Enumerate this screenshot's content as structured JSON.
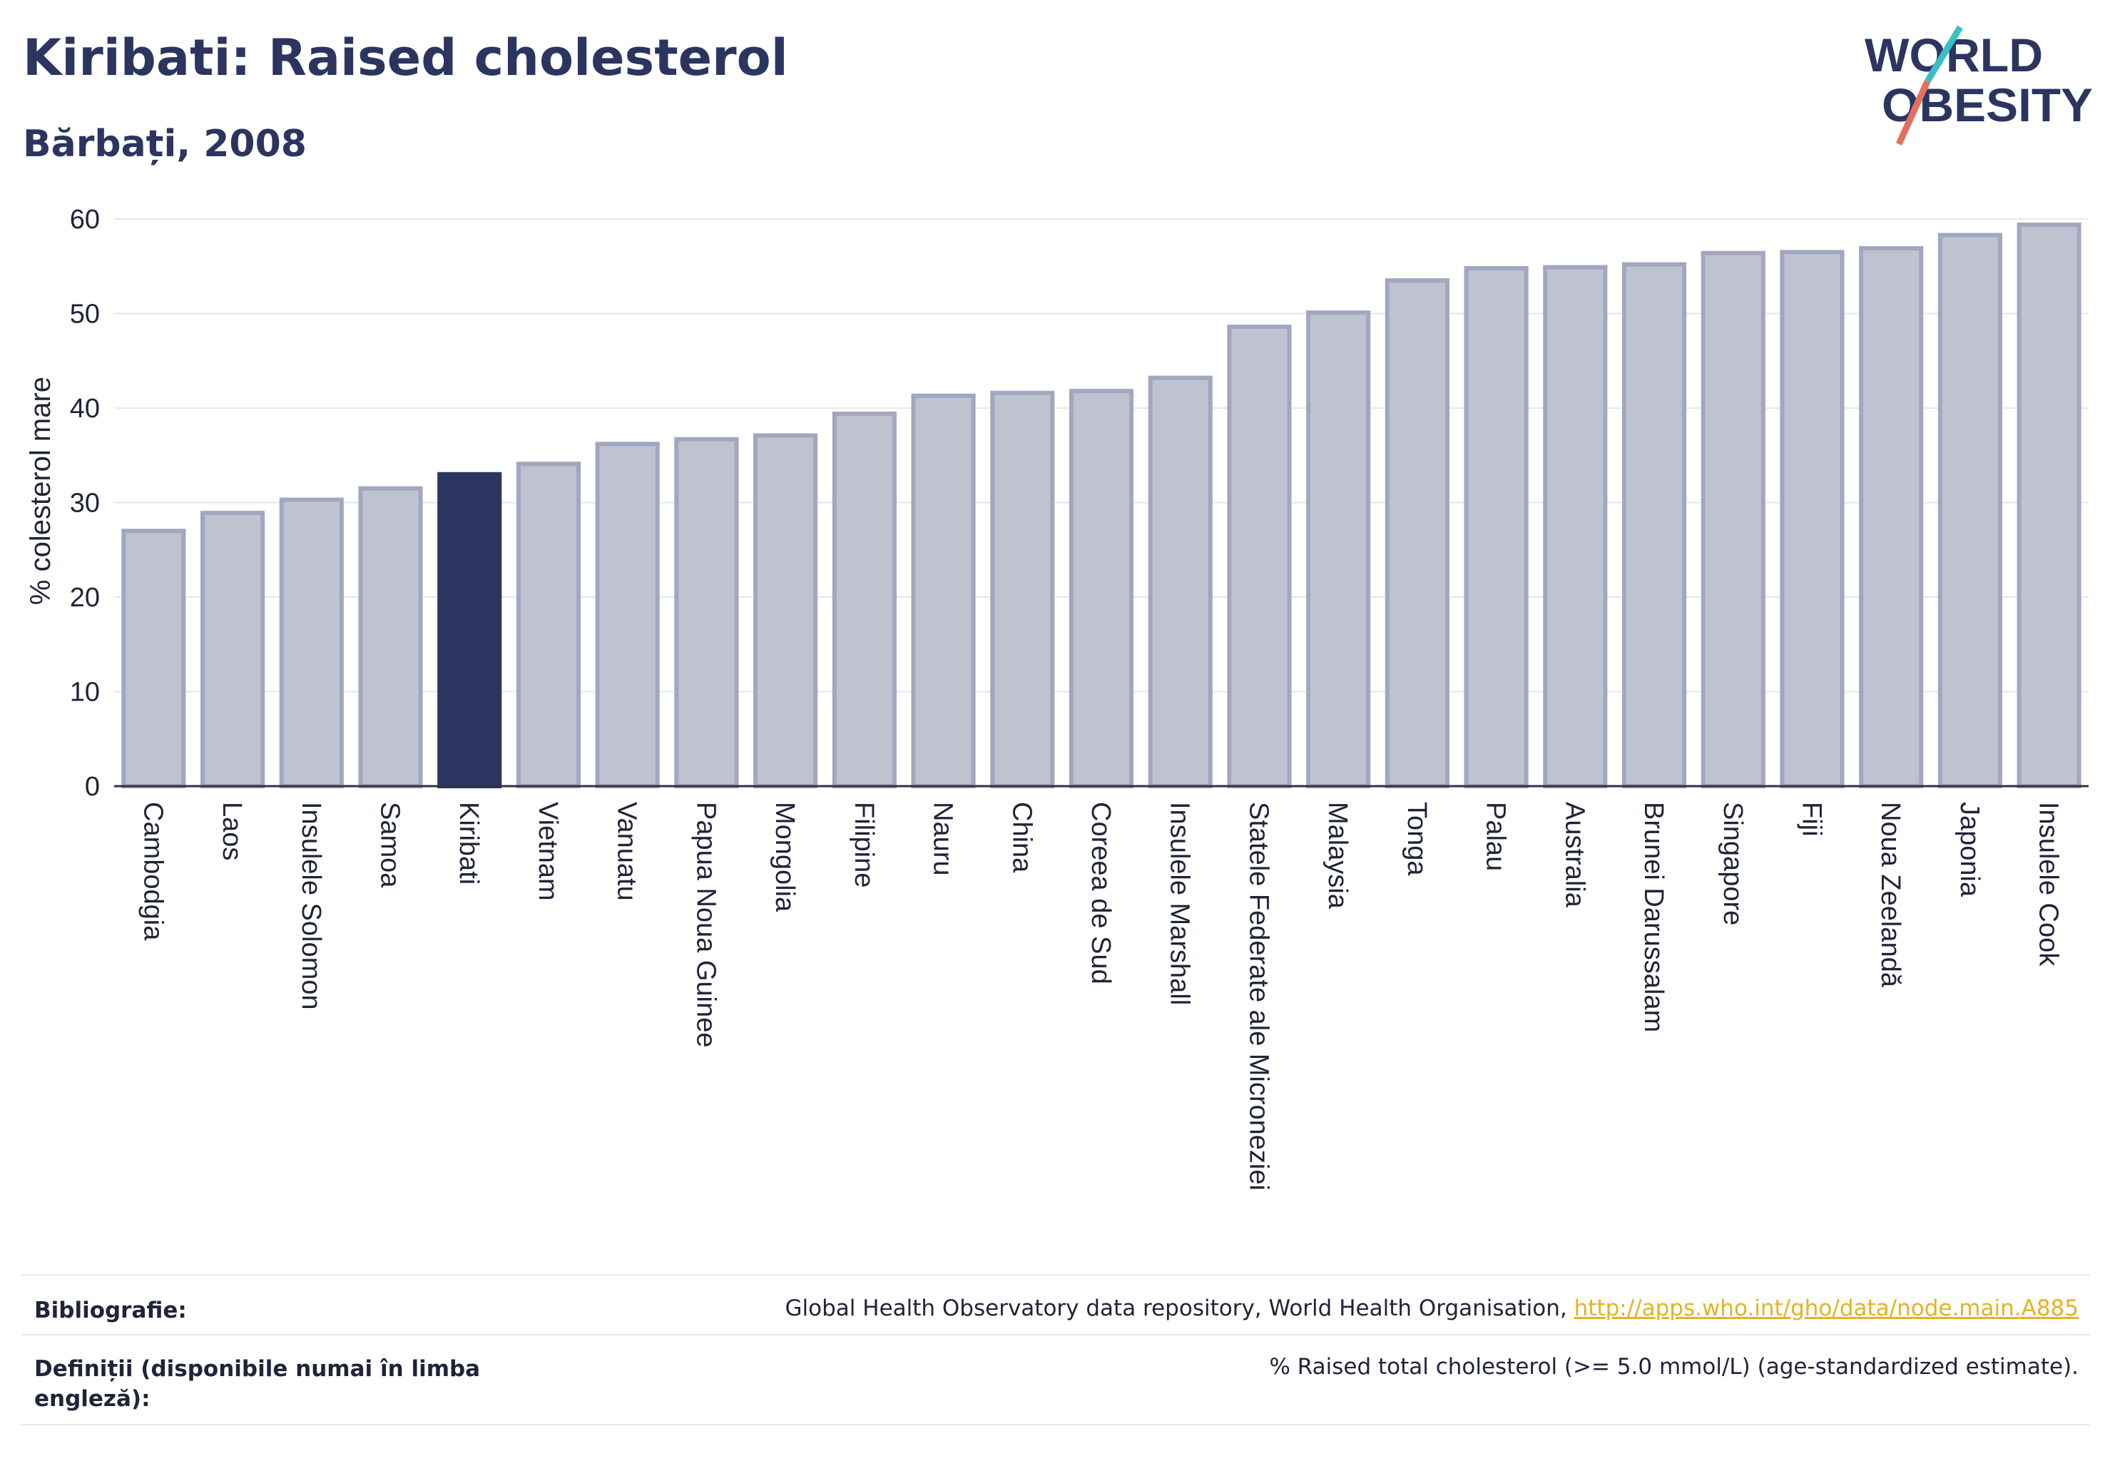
{
  "header": {
    "title": "Kiribati: Raised cholesterol",
    "subtitle": "Bărbați, 2008"
  },
  "logo": {
    "line1": "WORLD",
    "line2": "OBESITY"
  },
  "chart_data": {
    "type": "bar",
    "ylabel": "% colesterol mare",
    "xlabel": "",
    "ylim": [
      0,
      60
    ],
    "yticks": [
      0,
      10,
      20,
      30,
      40,
      50,
      60
    ],
    "grid": true,
    "highlight": "Kiribati",
    "colors": {
      "bar": "#bfc2d0",
      "bar_border": "#a2a7bf",
      "highlight": "#2b3560"
    },
    "categories": [
      "Cambodgia",
      "Laos",
      "Insulele Solomon",
      "Samoa",
      "Kiribati",
      "Vietnam",
      "Vanuatu",
      "Papua Noua Guinee",
      "Mongolia",
      "Filipine",
      "Nauru",
      "China",
      "Coreea de Sud",
      "Insulele Marshall",
      "Statele Federate ale Microneziei",
      "Malaysia",
      "Tonga",
      "Palau",
      "Australia",
      "Brunei Darussalam",
      "Singapore",
      "Fiji",
      "Noua Zeelandă",
      "Japonia",
      "Insulele Cook"
    ],
    "values": [
      27.0,
      28.9,
      30.3,
      31.5,
      33.0,
      34.1,
      36.2,
      36.7,
      37.1,
      39.4,
      41.3,
      41.6,
      41.8,
      43.2,
      48.6,
      50.1,
      53.5,
      54.8,
      54.9,
      55.2,
      56.4,
      56.5,
      56.9,
      58.3,
      59.4
    ]
  },
  "footer": {
    "bibliography_label": "Bibliografie:",
    "bibliography_text": "Global Health Observatory data repository, World Health Organisation, ",
    "bibliography_link": "http://apps.who.int/gho/data/node.main.A885",
    "definitions_label": "Definiții (disponibile numai în limba engleză):",
    "definitions_text": "% Raised total cholesterol (>= 5.0 mmol/L) (age-standardized estimate)."
  }
}
